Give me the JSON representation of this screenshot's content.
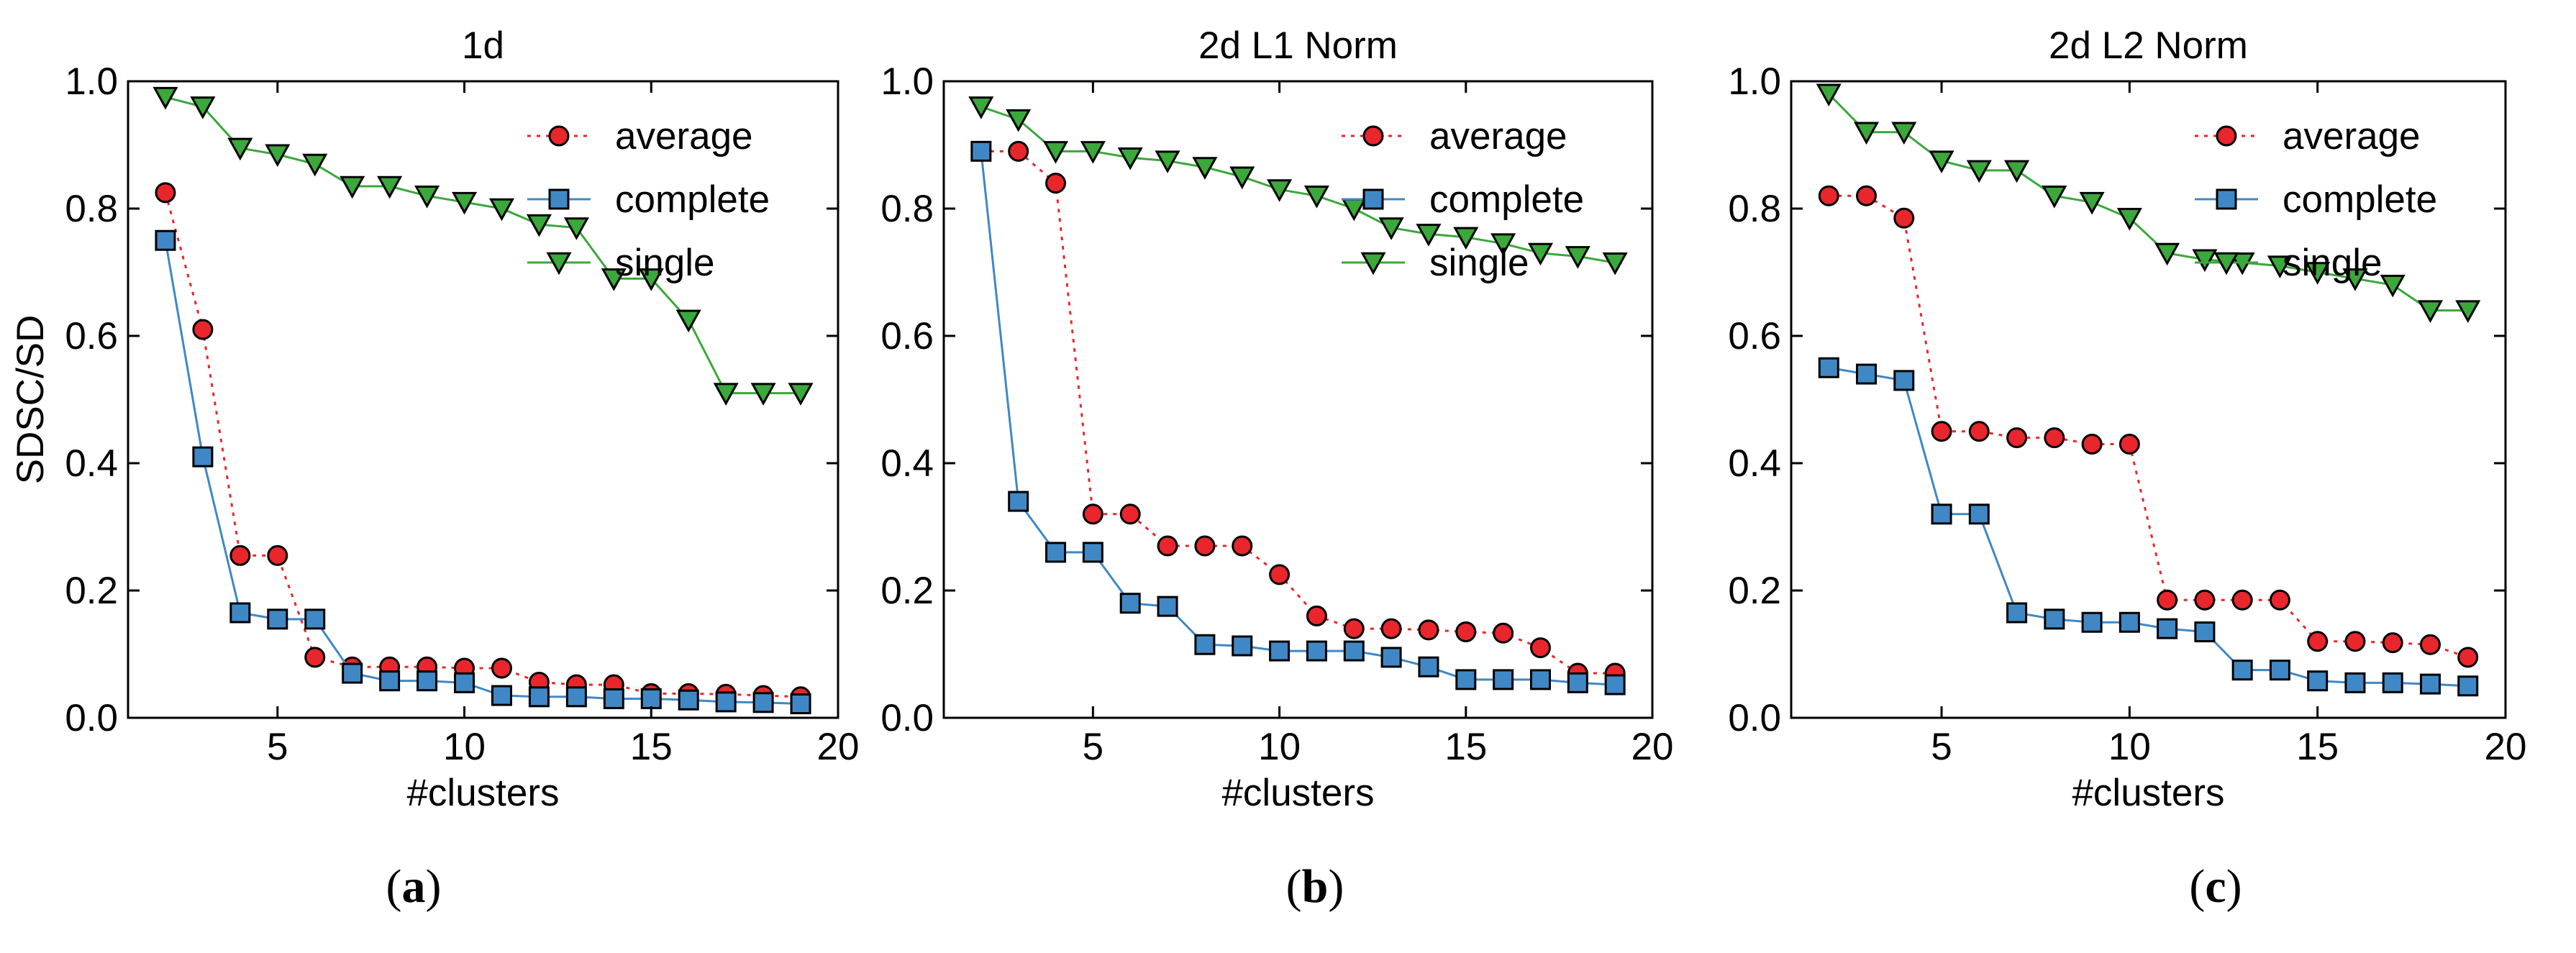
{
  "chart_data": [
    {
      "type": "line",
      "title": "1d",
      "xlabel": "#clusters",
      "ylabel": "SDSC/SD",
      "xlim": [
        1,
        20
      ],
      "ylim": [
        0.0,
        1.0
      ],
      "xticks": [
        5,
        10,
        15,
        20
      ],
      "yticks": [
        0.0,
        0.2,
        0.4,
        0.6,
        0.8,
        1.0
      ],
      "caption": "a",
      "legend_position": "top-right",
      "x": [
        2,
        3,
        4,
        5,
        6,
        7,
        8,
        9,
        10,
        11,
        12,
        13,
        14,
        15,
        16,
        17,
        18,
        19
      ],
      "series": [
        {
          "name": "average",
          "marker": "circle",
          "color": "#e8262b",
          "line": "dotted",
          "values": [
            0.825,
            0.61,
            0.255,
            0.255,
            0.095,
            0.08,
            0.08,
            0.08,
            0.078,
            0.078,
            0.056,
            0.052,
            0.052,
            0.038,
            0.038,
            0.037,
            0.035,
            0.033
          ]
        },
        {
          "name": "complete",
          "marker": "square",
          "color": "#3f88c5",
          "line": "solid",
          "values": [
            0.75,
            0.41,
            0.165,
            0.155,
            0.155,
            0.07,
            0.058,
            0.058,
            0.055,
            0.035,
            0.033,
            0.033,
            0.03,
            0.03,
            0.028,
            0.025,
            0.024,
            0.022
          ]
        },
        {
          "name": "single",
          "marker": "triangle-down",
          "color": "#3aa83a",
          "line": "solid",
          "values": [
            0.975,
            0.96,
            0.895,
            0.885,
            0.87,
            0.835,
            0.835,
            0.82,
            0.81,
            0.8,
            0.775,
            0.77,
            0.69,
            0.69,
            0.625,
            0.51,
            0.51,
            0.51
          ]
        }
      ]
    },
    {
      "type": "line",
      "title": "2d L1 Norm",
      "xlabel": "#clusters",
      "ylabel": "",
      "xlim": [
        1,
        20
      ],
      "ylim": [
        0.0,
        1.0
      ],
      "xticks": [
        5,
        10,
        15,
        20
      ],
      "yticks": [
        0.0,
        0.2,
        0.4,
        0.6,
        0.8,
        1.0
      ],
      "caption": "b",
      "legend_position": "top-right",
      "x": [
        2,
        3,
        4,
        5,
        6,
        7,
        8,
        9,
        10,
        11,
        12,
        13,
        14,
        15,
        16,
        17,
        18,
        19
      ],
      "series": [
        {
          "name": "average",
          "marker": "circle",
          "color": "#e8262b",
          "line": "dotted",
          "values": [
            0.89,
            0.89,
            0.84,
            0.32,
            0.32,
            0.27,
            0.27,
            0.27,
            0.225,
            0.16,
            0.14,
            0.14,
            0.138,
            0.135,
            0.133,
            0.11,
            0.07,
            0.07
          ]
        },
        {
          "name": "complete",
          "marker": "square",
          "color": "#3f88c5",
          "line": "solid",
          "values": [
            0.89,
            0.34,
            0.26,
            0.26,
            0.18,
            0.175,
            0.115,
            0.113,
            0.105,
            0.105,
            0.105,
            0.095,
            0.08,
            0.06,
            0.06,
            0.06,
            0.055,
            0.052
          ]
        },
        {
          "name": "single",
          "marker": "triangle-down",
          "color": "#3aa83a",
          "line": "solid",
          "values": [
            0.96,
            0.94,
            0.89,
            0.89,
            0.88,
            0.875,
            0.865,
            0.85,
            0.83,
            0.82,
            0.8,
            0.77,
            0.76,
            0.755,
            0.745,
            0.73,
            0.725,
            0.715
          ]
        }
      ]
    },
    {
      "type": "line",
      "title": "2d L2 Norm",
      "xlabel": "#clusters",
      "ylabel": "",
      "xlim": [
        1,
        20
      ],
      "ylim": [
        0.0,
        1.0
      ],
      "xticks": [
        5,
        10,
        15,
        20
      ],
      "yticks": [
        0.0,
        0.2,
        0.4,
        0.6,
        0.8,
        1.0
      ],
      "caption": "c",
      "legend_position": "top-right",
      "x": [
        2,
        3,
        4,
        5,
        6,
        7,
        8,
        9,
        10,
        11,
        12,
        13,
        14,
        15,
        16,
        17,
        18,
        19
      ],
      "series": [
        {
          "name": "average",
          "marker": "circle",
          "color": "#e8262b",
          "line": "dotted",
          "values": [
            0.82,
            0.82,
            0.785,
            0.45,
            0.45,
            0.44,
            0.44,
            0.43,
            0.43,
            0.185,
            0.185,
            0.185,
            0.185,
            0.12,
            0.12,
            0.118,
            0.115,
            0.095
          ]
        },
        {
          "name": "complete",
          "marker": "square",
          "color": "#3f88c5",
          "line": "solid",
          "values": [
            0.55,
            0.54,
            0.53,
            0.32,
            0.32,
            0.165,
            0.155,
            0.15,
            0.15,
            0.14,
            0.135,
            0.075,
            0.075,
            0.058,
            0.055,
            0.055,
            0.053,
            0.05
          ]
        },
        {
          "name": "single",
          "marker": "triangle-down",
          "color": "#3aa83a",
          "line": "solid",
          "values": [
            0.98,
            0.92,
            0.92,
            0.875,
            0.86,
            0.86,
            0.82,
            0.81,
            0.785,
            0.73,
            0.72,
            0.715,
            0.71,
            0.7,
            0.69,
            0.68,
            0.64,
            0.64
          ]
        }
      ]
    }
  ]
}
